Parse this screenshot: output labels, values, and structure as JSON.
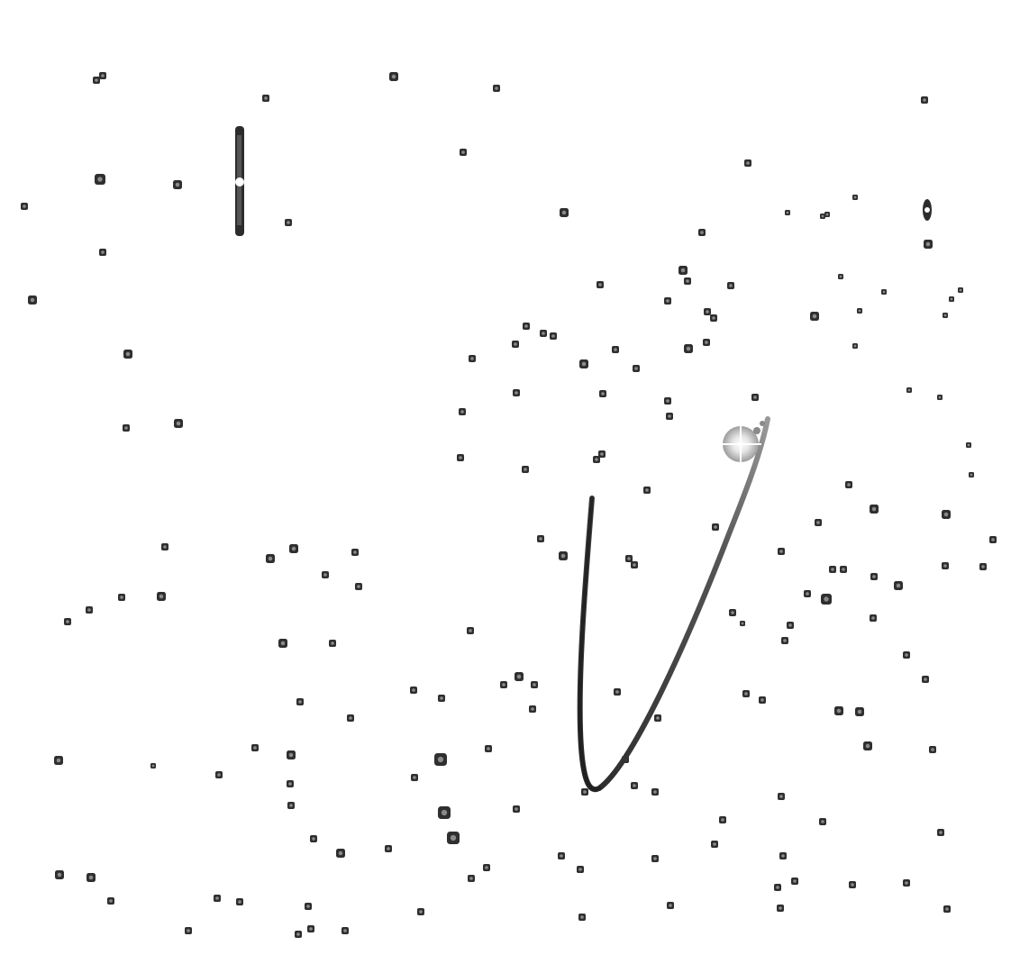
{
  "image": {
    "description_tag": "negative-star-field-with-comet-trail",
    "background_color": "#ffffff",
    "star_color": "#2f2f2f",
    "star_core_color": "#8a8a8a",
    "trail_color": "#3a3a3a",
    "highlight_color": "#ffffff"
  }
}
